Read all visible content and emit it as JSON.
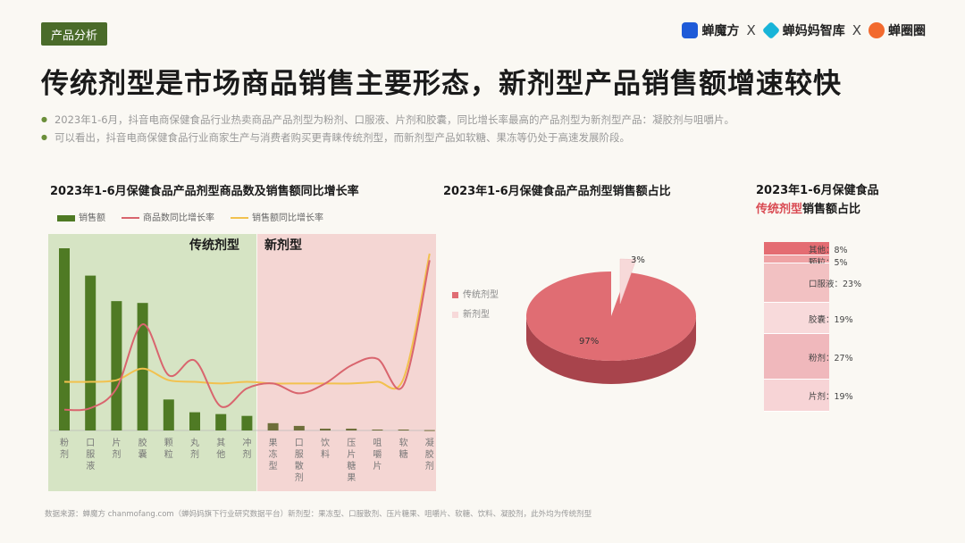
{
  "tag": "产品分析",
  "logos": [
    {
      "name": "蝉魔方",
      "color": "#1e5bd8"
    },
    {
      "name": "蝉妈妈智库",
      "color": "#18b4d8"
    },
    {
      "name": "蝉圈圈",
      "color": "#f26a2e"
    }
  ],
  "logo_sep": "X",
  "title": "传统剂型是市场商品销售主要形态，新剂型产品销售额增速较快",
  "bullets": [
    "2023年1-6月，抖音电商保健食品行业热卖商品产品剂型为粉剂、口服液、片剂和胶囊，同比增长率最高的产品剂型为新剂型产品：凝胶剂与咀嚼片。",
    "可以看出，抖音电商保健食品行业商家生产与消费者购买更青睐传统剂型，而新剂型产品如软糖、果冻等仍处于高速发展阶段。"
  ],
  "chart1": {
    "title": "2023年1-6月保健食品产品剂型商品数及销售额同比增长率",
    "legend": [
      "销售额",
      "商品数同比增长率",
      "销售额同比增长率"
    ],
    "region_labels": [
      "传统剂型",
      "新剂型"
    ]
  },
  "chart2": {
    "title": "2023年1-6月保健食品产品剂型销售额占比",
    "legend": [
      "传统剂型",
      "新剂型"
    ],
    "labels": [
      "97%",
      "3%"
    ]
  },
  "chart3": {
    "title_line1": "2023年1-6月保健食品",
    "title_hl": "传统剂型",
    "title_rest": "销售额占比"
  },
  "source": "数据来源：蝉魔方 chanmofang.com（蝉妈妈旗下行业研究数据平台）新剂型：果冻型、口服散剂、压片糖果、咀嚼片、软糖、饮料、凝胶剂，此外均为传统剂型",
  "colors": {
    "bar": "#4f7a24",
    "bar_new": "#6e6e3a",
    "line_count": "#d9656e",
    "line_sales": "#f2c14e",
    "trad_bg": "#d6e4c4",
    "new_bg": "#f4d6d3",
    "pie_main": "#e06d73",
    "pie_minor": "#f7d9d9"
  },
  "chart_data": [
    {
      "type": "bar",
      "categories": [
        "粉剂",
        "口服液",
        "片剂",
        "胶囊",
        "颗粒",
        "丸剂",
        "其他",
        "冲剂",
        "果冻型",
        "口服散剂",
        "饮料",
        "压片糖果",
        "咀嚼片",
        "软糖",
        "凝胶剂"
      ],
      "series": [
        {
          "name": "销售额",
          "values": [
            100,
            85,
            71,
            70,
            17,
            10,
            9,
            8,
            4,
            2.5,
            1,
            1,
            0.5,
            0.5,
            0.2
          ]
        },
        {
          "name": "商品数同比增长率",
          "values": [
            5,
            6,
            18,
            57,
            26,
            35,
            7,
            18,
            21,
            15,
            21,
            32,
            36,
            20,
            96
          ]
        },
        {
          "name": "销售额同比增长率",
          "values": [
            22,
            22,
            23,
            30,
            23,
            22,
            21,
            22,
            21,
            21,
            21,
            21,
            22,
            24,
            100
          ]
        }
      ]
    },
    {
      "type": "pie",
      "categories": [
        "传统剂型",
        "新剂型"
      ],
      "values": [
        97,
        3
      ]
    },
    {
      "type": "bar",
      "title": "2023年1-6月保健食品传统剂型销售额占比",
      "categories": [
        "其他",
        "颗粒",
        "口服液",
        "胶囊",
        "粉剂",
        "片剂"
      ],
      "values": [
        8,
        5,
        23,
        19,
        27,
        19
      ],
      "labels": [
        "其他：8%",
        "颗粒：5%",
        "口服液：23%",
        "胶囊：19%",
        "粉剂：27%",
        "片剂：19%"
      ]
    }
  ]
}
